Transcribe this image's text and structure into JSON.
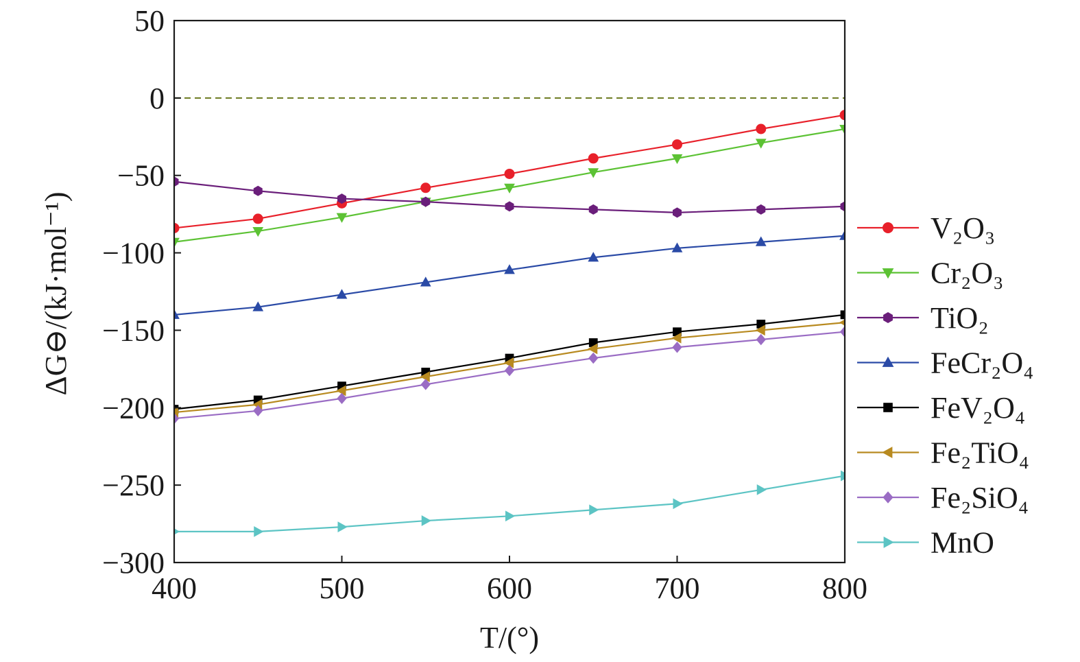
{
  "chart_data": {
    "type": "line",
    "xlabel": "T/(°)",
    "ylabel": "ΔG⊖/(kJ·mol⁻¹)",
    "xlim": [
      400,
      800
    ],
    "ylim": [
      -300,
      50
    ],
    "x_ticks": [
      400,
      500,
      600,
      700,
      800
    ],
    "y_ticks": [
      50,
      0,
      -50,
      -100,
      -150,
      -200,
      -250,
      -300
    ],
    "x_tick_labels": [
      "400",
      "500",
      "600",
      "700",
      "800"
    ],
    "y_tick_labels": [
      "50",
      "0",
      "−50",
      "−100",
      "−150",
      "−200",
      "−250",
      "−300"
    ],
    "grid": false,
    "legend_position": "right",
    "reference_line": {
      "y": 0,
      "style": "dashed",
      "color": "#6b7a1e"
    },
    "x": [
      400,
      450,
      500,
      550,
      600,
      650,
      700,
      750,
      800
    ],
    "series": [
      {
        "name": "V₂O₃",
        "marker": "circle",
        "color": "#e8202a",
        "values": [
          -84,
          -78,
          -68,
          -58,
          -49,
          -39,
          -30,
          -20,
          -11
        ]
      },
      {
        "name": "Cr₂O₃",
        "marker": "triangle-down",
        "color": "#5cc234",
        "values": [
          -93,
          -86,
          -77,
          -67,
          -58,
          -48,
          -39,
          -29,
          -20
        ]
      },
      {
        "name": "TiO₂",
        "marker": "hexagon",
        "color": "#6a1e7a",
        "values": [
          -54,
          -60,
          -65,
          -67,
          -70,
          -72,
          -74,
          -72,
          -70
        ]
      },
      {
        "name": "FeCr₂O₄",
        "marker": "triangle-up",
        "color": "#2a4aa6",
        "values": [
          -140,
          -135,
          -127,
          -119,
          -111,
          -103,
          -97,
          -93,
          -89
        ]
      },
      {
        "name": "FeV₂O₄",
        "marker": "square",
        "color": "#000000",
        "values": [
          -201,
          -195,
          -186,
          -177,
          -168,
          -158,
          -151,
          -146,
          -140
        ]
      },
      {
        "name": "Fe₂TiO₄",
        "marker": "triangle-left",
        "color": "#b88a20",
        "values": [
          -203,
          -198,
          -189,
          -180,
          -171,
          -162,
          -155,
          -150,
          -145
        ]
      },
      {
        "name": "Fe₂SiO₄",
        "marker": "diamond",
        "color": "#9a6cc4",
        "values": [
          -207,
          -202,
          -194,
          -185,
          -176,
          -168,
          -161,
          -156,
          -151
        ]
      },
      {
        "name": "MnO",
        "marker": "triangle-right",
        "color": "#5cc4c4",
        "values": [
          -280,
          -280,
          -277,
          -273,
          -270,
          -266,
          -262,
          -253,
          -244
        ]
      }
    ]
  }
}
